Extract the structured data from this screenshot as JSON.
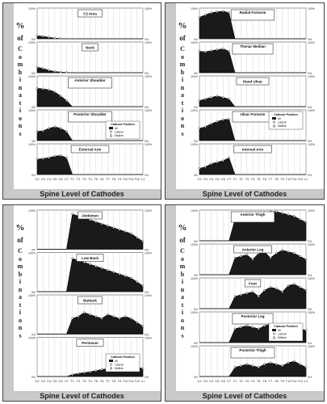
{
  "common": {
    "ylabel_pct": "%",
    "ylabel_of": "of",
    "ylabel_word": "Combinations",
    "xlabel": "Spine Level of Cathodes",
    "xticks": [
      "C2",
      "C3",
      "C4",
      "C5",
      "C6",
      "C7",
      "T1",
      "T2",
      "T3",
      "T4",
      "T5",
      "T6",
      "T7",
      "T8",
      "T9",
      "T10",
      "T11",
      "T12",
      "L1"
    ],
    "left_ticks": [
      "100%",
      "80%",
      "60%",
      "40%",
      "20%",
      "0%"
    ],
    "right_ticks_100": [
      "100%",
      "80%",
      "60%",
      "40%",
      "20%",
      "0%"
    ]
  },
  "colors": {
    "fill": "#1a1a1a",
    "strip": "#c9c9c9",
    "panel_bg": "#ffffff"
  },
  "chart_data": [
    {
      "type": "area",
      "figure": "top-left",
      "xlabel": "Spine Level of Cathodes",
      "ylabel": "% of Combinations",
      "ylim": [
        0,
        100
      ],
      "x": [
        "C2",
        "C3",
        "C4",
        "C5",
        "C6",
        "C7",
        "T1",
        "T2",
        "T3",
        "T4",
        "T5",
        "T6",
        "T7",
        "T8",
        "T9",
        "T10",
        "T11",
        "T12",
        "L1"
      ],
      "panels": [
        {
          "title": "C2 Area",
          "values": [
            10,
            8,
            5,
            2,
            1,
            0,
            0,
            0,
            0,
            0,
            0,
            0,
            0,
            0,
            0,
            0,
            0,
            0,
            0
          ]
        },
        {
          "title": "Neck",
          "values": [
            18,
            14,
            8,
            4,
            2,
            1,
            0,
            0,
            0,
            0,
            0,
            0,
            0,
            0,
            0,
            0,
            0,
            0,
            0
          ]
        },
        {
          "title": "Anterior Shoulder",
          "values": [
            60,
            58,
            55,
            48,
            35,
            20,
            0,
            0,
            0,
            0,
            0,
            0,
            0,
            0,
            0,
            0,
            0,
            0,
            0
          ]
        },
        {
          "title": "Posterior Shoulder",
          "values": [
            30,
            32,
            40,
            45,
            40,
            30,
            0,
            0,
            0,
            0,
            0,
            0,
            0,
            0,
            0,
            0,
            0,
            0,
            0
          ]
        },
        {
          "title": "External Arm",
          "values": [
            50,
            52,
            55,
            60,
            62,
            55,
            0,
            0,
            0,
            0,
            0,
            0,
            0,
            0,
            0,
            0,
            0,
            0,
            0
          ]
        }
      ],
      "legend": {
        "title": "Cathode Position",
        "items": [
          "All",
          "Lateral",
          "Midline"
        ]
      }
    },
    {
      "type": "area",
      "figure": "top-right",
      "xlabel": "Spine Level of Cathodes",
      "ylabel": "% of Combinations",
      "ylim": [
        0,
        100
      ],
      "x": [
        "C2",
        "C3",
        "C4",
        "C5",
        "C6",
        "C7",
        "T1",
        "T2",
        "T3",
        "T4",
        "T5",
        "T6",
        "T7",
        "T8",
        "T9",
        "T10",
        "T11",
        "T12",
        "L1"
      ],
      "panels": [
        {
          "title": "Radial Forearm",
          "values": [
            70,
            78,
            85,
            88,
            90,
            85,
            0,
            0,
            0,
            0,
            0,
            0,
            0,
            0,
            0,
            0,
            0,
            0,
            0
          ]
        },
        {
          "title": "Thenar Median",
          "values": [
            70,
            68,
            72,
            75,
            78,
            70,
            0,
            0,
            0,
            0,
            0,
            0,
            0,
            0,
            0,
            0,
            0,
            0,
            0
          ]
        },
        {
          "title": "Hand Ulnar",
          "values": [
            20,
            25,
            30,
            35,
            30,
            25,
            0,
            0,
            0,
            0,
            0,
            0,
            0,
            0,
            0,
            0,
            0,
            0,
            0
          ]
        },
        {
          "title": "Ulnar Forearm",
          "values": [
            40,
            45,
            55,
            62,
            68,
            70,
            0,
            0,
            0,
            0,
            0,
            0,
            0,
            0,
            0,
            0,
            0,
            0,
            0
          ]
        },
        {
          "title": "Internal Arm",
          "values": [
            20,
            25,
            35,
            40,
            45,
            55,
            0,
            0,
            0,
            0,
            0,
            0,
            0,
            0,
            0,
            0,
            0,
            0,
            0
          ]
        }
      ],
      "legend": {
        "title": "Cathode Position",
        "items": [
          "All",
          "Lateral",
          "Midline"
        ]
      }
    },
    {
      "type": "area",
      "figure": "bottom-left",
      "xlabel": "Spine Level of Cathodes",
      "ylabel": "% of Combinations",
      "ylim": [
        0,
        100
      ],
      "x": [
        "C2",
        "C3",
        "C4",
        "C5",
        "C6",
        "C7",
        "T1",
        "T2",
        "T3",
        "T4",
        "T5",
        "T6",
        "T7",
        "T8",
        "T9",
        "T10",
        "T11",
        "T12",
        "L1"
      ],
      "panels": [
        {
          "title": "Abdomen",
          "values": [
            0,
            0,
            0,
            0,
            0,
            0,
            90,
            85,
            80,
            75,
            70,
            65,
            60,
            55,
            50,
            45,
            40,
            30,
            20
          ]
        },
        {
          "title": "Low Back",
          "values": [
            0,
            0,
            0,
            0,
            0,
            0,
            85,
            80,
            75,
            70,
            65,
            60,
            55,
            50,
            45,
            40,
            35,
            25,
            15
          ]
        },
        {
          "title": "Buttock",
          "values": [
            0,
            0,
            0,
            0,
            0,
            0,
            40,
            45,
            55,
            50,
            45,
            40,
            50,
            45,
            40,
            45,
            40,
            30,
            20
          ]
        },
        {
          "title": "Perineum",
          "values": [
            0,
            0,
            0,
            0,
            0,
            0,
            5,
            8,
            10,
            12,
            15,
            18,
            20,
            22,
            25,
            28,
            30,
            25,
            20
          ]
        }
      ],
      "legend": {
        "title": "Cathode Position",
        "items": [
          "All",
          "Lateral",
          "Midline"
        ]
      }
    },
    {
      "type": "area",
      "figure": "bottom-right",
      "xlabel": "Spine Level of Cathodes",
      "ylabel": "% of Combinations",
      "ylim": [
        0,
        100
      ],
      "x": [
        "C2",
        "C3",
        "C4",
        "C5",
        "C6",
        "C7",
        "T1",
        "T2",
        "T3",
        "T4",
        "T5",
        "T6",
        "T7",
        "T8",
        "T9",
        "T10",
        "T11",
        "T12",
        "L1"
      ],
      "panels": [
        {
          "title": "Anterior Thigh",
          "values": [
            0,
            0,
            0,
            0,
            0,
            0,
            70,
            75,
            80,
            85,
            90,
            92,
            95,
            95,
            90,
            85,
            80,
            70,
            60
          ]
        },
        {
          "title": "Anterior Leg",
          "values": [
            0,
            0,
            0,
            0,
            0,
            0,
            55,
            60,
            65,
            50,
            70,
            75,
            55,
            70,
            80,
            75,
            70,
            60,
            50
          ]
        },
        {
          "title": "Foot",
          "values": [
            0,
            0,
            0,
            0,
            0,
            0,
            40,
            45,
            50,
            55,
            40,
            60,
            70,
            65,
            55,
            75,
            80,
            70,
            60
          ]
        },
        {
          "title": "Posterior Leg",
          "values": [
            0,
            0,
            0,
            0,
            0,
            0,
            45,
            50,
            55,
            50,
            45,
            55,
            60,
            55,
            50,
            50,
            55,
            45,
            40
          ]
        },
        {
          "title": "Posterior Thigh",
          "values": [
            0,
            0,
            0,
            0,
            0,
            0,
            30,
            35,
            40,
            35,
            30,
            40,
            45,
            40,
            35,
            45,
            50,
            40,
            30
          ]
        }
      ],
      "legend": {
        "title": "Cathode Position",
        "items": [
          "All",
          "Lateral",
          "Midline"
        ]
      }
    }
  ]
}
